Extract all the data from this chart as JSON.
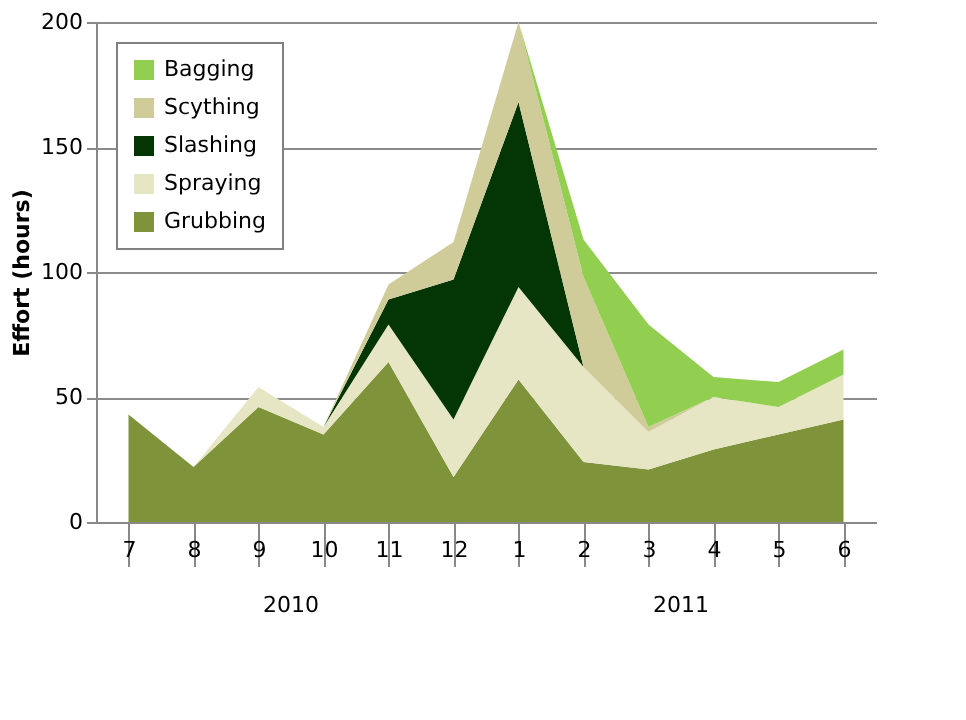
{
  "chart_data": {
    "type": "area",
    "stacked": true,
    "ylabel": "Effort  (hours)",
    "categories": [
      "7",
      "8",
      "9",
      "10",
      "11",
      "12",
      "1",
      "2",
      "3",
      "4",
      "5",
      "6"
    ],
    "series": [
      {
        "name": "Grubbing",
        "color": "#7f933a",
        "values": [
          43,
          22,
          46,
          35,
          64,
          18,
          57,
          24,
          21,
          29,
          35,
          41
        ]
      },
      {
        "name": "Spraying",
        "color": "#e6e6c4",
        "values": [
          0,
          0,
          8,
          3,
          15,
          23,
          37,
          38,
          15,
          21,
          11,
          18
        ]
      },
      {
        "name": "Slashing",
        "color": "#033505",
        "values": [
          0,
          0,
          0,
          0,
          10,
          56,
          74,
          0,
          0,
          0,
          0,
          0
        ]
      },
      {
        "name": "Scything",
        "color": "#cfcc9a",
        "values": [
          0,
          0,
          0,
          0,
          6,
          15,
          32,
          36,
          2,
          0,
          0,
          0
        ]
      },
      {
        "name": "Bagging",
        "color": "#92cf50",
        "values": [
          null,
          null,
          null,
          null,
          null,
          null,
          0,
          15,
          41,
          8,
          10,
          10
        ]
      }
    ],
    "ylim": [
      0,
      200
    ],
    "yticks": [
      0,
      50,
      100,
      150,
      200
    ],
    "grid": "y",
    "legend": "top left",
    "annotations": [
      "2010",
      "2011"
    ]
  }
}
